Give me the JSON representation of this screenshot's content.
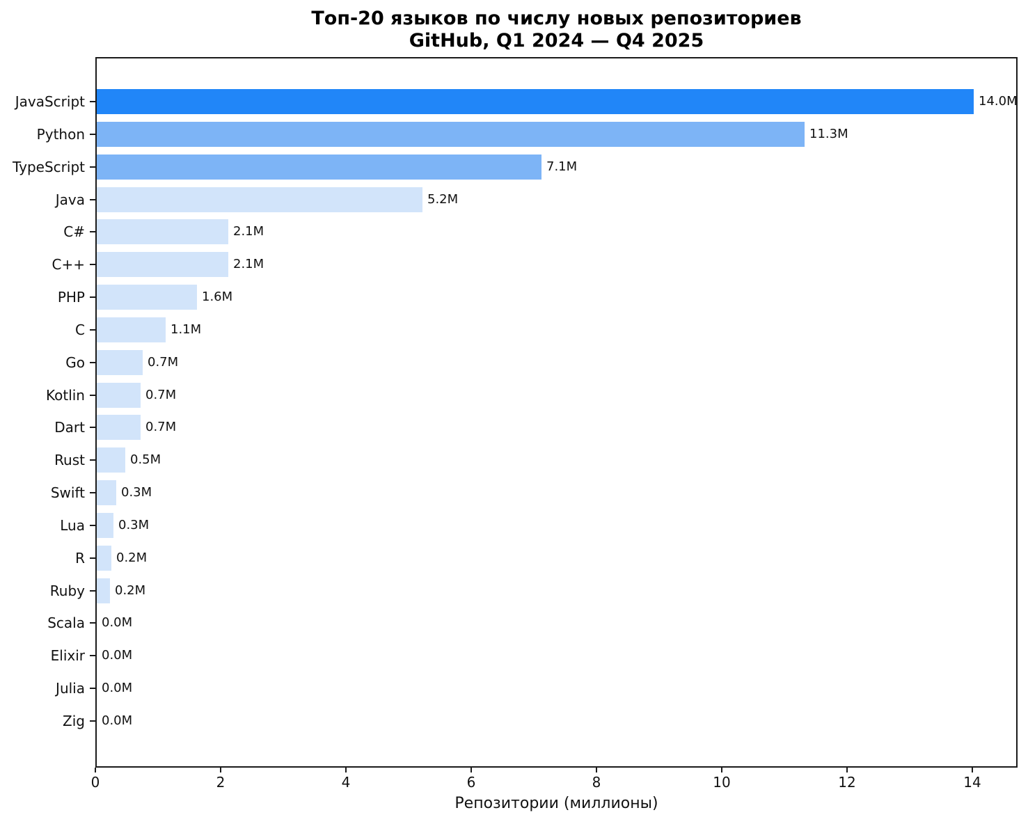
{
  "title": {
    "line1": "Топ-20 языков по числу новых репозиториев",
    "line2": "GitHub, Q1 2024 — Q4 2025"
  },
  "chart_data": {
    "type": "bar",
    "orientation": "horizontal",
    "title": "Топ-20 языков по числу новых репозиториев — GitHub, Q1 2024 — Q4 2025",
    "xlabel": "Репозитории (миллионы)",
    "ylabel": "",
    "categories": [
      "JavaScript",
      "Python",
      "TypeScript",
      "Java",
      "C#",
      "C++",
      "PHP",
      "C",
      "Go",
      "Kotlin",
      "Dart",
      "Rust",
      "Swift",
      "Lua",
      "R",
      "Ruby",
      "Scala",
      "Elixir",
      "Julia",
      "Zig"
    ],
    "values": [
      14.0,
      11.3,
      7.1,
      5.2,
      2.1,
      2.1,
      1.6,
      1.1,
      0.73,
      0.7,
      0.7,
      0.46,
      0.31,
      0.27,
      0.23,
      0.21,
      0.0,
      0.0,
      0.0,
      0.0
    ],
    "value_labels": [
      "14.0M",
      "11.3M",
      "7.1M",
      "5.2M",
      "2.1M",
      "2.1M",
      "1.6M",
      "1.1M",
      "0.7M",
      "0.7M",
      "0.7M",
      "0.5M",
      "0.3M",
      "0.3M",
      "0.2M",
      "0.2M",
      "0.0M",
      "0.0M",
      "0.0M",
      "0.0M"
    ],
    "bar_colors": [
      "#2186F8",
      "#7DB4F6",
      "#7DB4F6",
      "#D2E4FA",
      "#D2E4FA",
      "#D2E4FA",
      "#D2E4FA",
      "#D2E4FA",
      "#D2E4FA",
      "#D2E4FA",
      "#D2E4FA",
      "#D2E4FA",
      "#D2E4FA",
      "#D2E4FA",
      "#D2E4FA",
      "#D2E4FA",
      "#D2E4FA",
      "#D2E4FA",
      "#D2E4FA",
      "#D2E4FA"
    ],
    "xlim": [
      0,
      14.72
    ],
    "xticks": [
      0,
      2,
      4,
      6,
      8,
      10,
      12,
      14
    ],
    "xtick_labels": [
      "0",
      "2",
      "4",
      "6",
      "8",
      "10",
      "12",
      "14"
    ],
    "grid": false,
    "legend": null
  },
  "colors": {
    "bar_high": "#2186F8",
    "bar_mid": "#7DB4F6",
    "bar_low": "#D2E4FA",
    "axis": "#1a1a1a",
    "text": "#111111",
    "background": "#ffffff"
  }
}
